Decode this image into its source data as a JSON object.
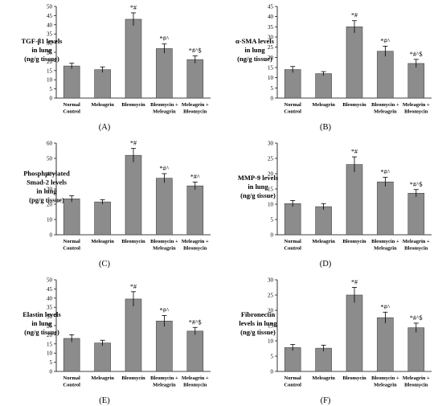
{
  "figure": {
    "categories": [
      "Normal Control",
      "Meleagrin",
      "Bleomycin",
      "Bleomycin + Meleagrin",
      "Meleagrin + Bleomycin"
    ],
    "bar_color": "#8c8c8c"
  },
  "chart_data": [
    {
      "type": "bar",
      "panel_label": "(A)",
      "ylabel": [
        "TGF-β1 levels",
        "in lung",
        "(ng/g tissue)"
      ],
      "ylim": [
        0,
        50
      ],
      "yticks": [
        0,
        5,
        10,
        15,
        20,
        25,
        30,
        35,
        40,
        45,
        50
      ],
      "categories": [
        [
          "Normal",
          "Control"
        ],
        [
          "Meleagrin"
        ],
        [
          "Bleomycin"
        ],
        [
          "Bleomycin +",
          "Meleagrin"
        ],
        [
          "Meleagrin +",
          "Bleomycin"
        ]
      ],
      "values": [
        17.5,
        15.5,
        43,
        27,
        21
      ],
      "errors": [
        1.5,
        1.5,
        3.5,
        2.5,
        2
      ],
      "annotations": [
        "",
        "",
        "*#",
        "*#^",
        "*#^$"
      ]
    },
    {
      "type": "bar",
      "panel_label": "(B)",
      "ylabel": [
        "α-SMA levels",
        "in lung",
        "(ng/g tissue)"
      ],
      "ylim": [
        0,
        45
      ],
      "yticks": [
        0,
        5,
        10,
        15,
        20,
        25,
        30,
        35,
        40,
        45
      ],
      "categories": [
        [
          "Normal",
          "Control"
        ],
        [
          "Meleagrin"
        ],
        [
          "Bleomycin"
        ],
        [
          "Bleomycin +",
          "Meleagrin"
        ],
        [
          "Meleagrin +",
          "Bleomycin"
        ]
      ],
      "values": [
        14,
        12,
        35,
        23,
        17
      ],
      "errors": [
        1.5,
        1,
        3,
        2.5,
        2
      ],
      "annotations": [
        "",
        "",
        "*#",
        "*#^",
        "*#^$"
      ]
    },
    {
      "type": "bar",
      "panel_label": "(C)",
      "ylabel": [
        "Phosphprylated",
        "Smad-2 levels",
        "in lung",
        "(pg/g tissue)"
      ],
      "ylim": [
        0,
        60
      ],
      "yticks": [
        0,
        10,
        20,
        30,
        40,
        50,
        60
      ],
      "categories": [
        [
          "Normal",
          "Control"
        ],
        [
          "Meleagrin"
        ],
        [
          "Bleomycin"
        ],
        [
          "Bleomycin +",
          "Meleagrin"
        ],
        [
          "Meleagrin +",
          "Bleomycin"
        ]
      ],
      "values": [
        23.5,
        21.5,
        52,
        37,
        32
      ],
      "errors": [
        2,
        1.5,
        4.5,
        3,
        2.5
      ],
      "annotations": [
        "",
        "",
        "*#",
        "*#^",
        "*#^"
      ]
    },
    {
      "type": "bar",
      "panel_label": "(D)",
      "ylabel": [
        "MMP-9 levels",
        "in lung",
        "(ng/g tissue)"
      ],
      "ylim": [
        0,
        30
      ],
      "yticks": [
        0,
        5,
        10,
        15,
        20,
        25,
        30
      ],
      "categories": [
        [
          "Normal",
          "Control"
        ],
        [
          "Meleagrin"
        ],
        [
          "Bleomycin"
        ],
        [
          "Bleomycin +",
          "Meleagrin"
        ],
        [
          "Meleagrin +",
          "Bleomycin"
        ]
      ],
      "values": [
        10.2,
        9.2,
        23,
        17.3,
        13.6
      ],
      "errors": [
        1,
        1,
        2.5,
        1.5,
        1.2
      ],
      "annotations": [
        "",
        "",
        "*#",
        "*#^",
        "*#^$"
      ]
    },
    {
      "type": "bar",
      "panel_label": "(E)",
      "ylabel": [
        "Elastin levels",
        "in lung",
        "(ng/g tissue)"
      ],
      "ylim": [
        0,
        50
      ],
      "yticks": [
        0,
        5,
        10,
        15,
        20,
        25,
        30,
        35,
        40,
        45,
        50
      ],
      "categories": [
        [
          "Normal",
          "Control"
        ],
        [
          "Meleagrin"
        ],
        [
          "Bleomycin"
        ],
        [
          "Bleomycin +",
          "Meleagrin"
        ],
        [
          "Meleagrin +",
          "Bleomycin"
        ]
      ],
      "values": [
        18,
        15.5,
        39.5,
        27.5,
        22
      ],
      "errors": [
        2,
        1.5,
        4,
        3,
        2
      ],
      "annotations": [
        "",
        "",
        "*#",
        "*#^",
        "*#^$"
      ]
    },
    {
      "type": "bar",
      "panel_label": "(F)",
      "ylabel": [
        "Fibronectin",
        "levels in lung",
        "(ng/g tissue)"
      ],
      "ylim": [
        0,
        30
      ],
      "yticks": [
        0,
        5,
        10,
        15,
        20,
        25,
        30
      ],
      "categories": [
        [
          "Normal",
          "Control"
        ],
        [
          "Meleagrin"
        ],
        [
          "Bleomycin"
        ],
        [
          "Bleomycin +",
          "Meleagrin"
        ],
        [
          "Meleagrin +",
          "Bleomycin"
        ]
      ],
      "values": [
        7.8,
        7.6,
        25,
        17.6,
        14.3
      ],
      "errors": [
        1,
        1,
        2.5,
        1.8,
        1.5
      ],
      "annotations": [
        "",
        "",
        "*#",
        "*#^",
        "*#^$"
      ]
    }
  ]
}
